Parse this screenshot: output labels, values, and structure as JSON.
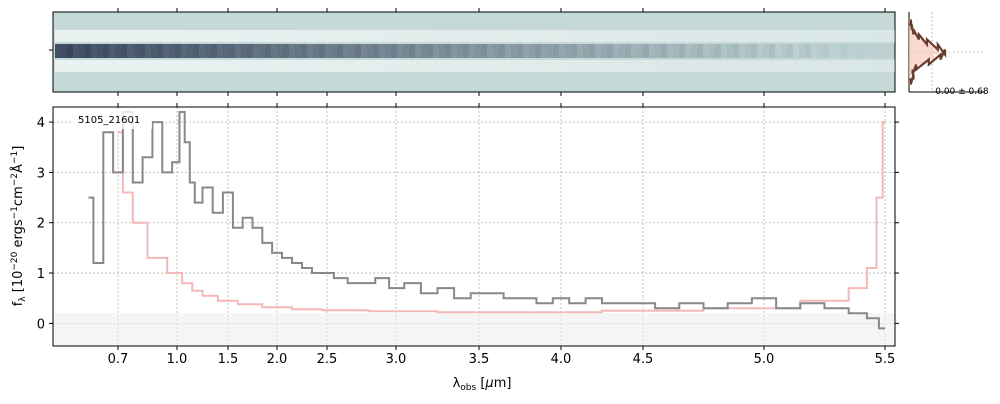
{
  "chart_data": [
    {
      "type": "heatmap",
      "panel": "2d-spectrum",
      "description_visible": "2D spectral cutout, grayscale on teal-gray background",
      "x_ticks_shared_with": "spectrum"
    },
    {
      "type": "histogram",
      "panel": "residual-histogram",
      "annotation": "-0.00 ± 0.68",
      "bins_y": [
        -3,
        -2.5,
        -2,
        -1.5,
        -1,
        -0.5,
        0,
        0.5,
        1,
        1.5,
        2,
        2.5,
        3
      ],
      "counts": [
        0.2,
        0.5,
        0.4,
        0.8,
        2.2,
        3.5,
        4.0,
        3.2,
        2.0,
        1.1,
        0.5,
        0.3,
        0.2
      ],
      "ref_counts": [
        0.05,
        0.15,
        0.4,
        0.9,
        1.8,
        2.8,
        3.2,
        2.8,
        1.8,
        0.9,
        0.4,
        0.15,
        0.05
      ]
    },
    {
      "type": "line",
      "panel": "1d-spectrum",
      "label": "5105_21601",
      "xlabel": "λ_obs [μm]",
      "ylabel": "f_λ [10^-20 ergs^-1 cm^-2 Å^-1]",
      "ylim": [
        -0.45,
        4.3
      ],
      "xlim": [
        0.5,
        5.52
      ],
      "x_ticks": [
        {
          "v": 0.7,
          "label": "0.7"
        },
        {
          "v": 1.0,
          "label": "1.0"
        },
        {
          "v": 1.5,
          "label": "1.5"
        },
        {
          "v": 2.0,
          "label": "2.0"
        },
        {
          "v": 2.5,
          "label": "2.5"
        },
        {
          "v": 3.0,
          "label": "3.0"
        },
        {
          "v": 3.5,
          "label": "3.5"
        },
        {
          "v": 4.0,
          "label": "4.0"
        },
        {
          "v": 4.5,
          "label": "4.5"
        },
        {
          "v": 5.0,
          "label": "5.0"
        },
        {
          "v": 5.5,
          "label": "5.5"
        }
      ],
      "y_ticks": [
        0,
        1,
        2,
        3,
        4
      ],
      "grid": true,
      "colors": {
        "flux": "#888888",
        "error": "#f4b8b8",
        "err_band": "#eeeeee"
      },
      "series": [
        {
          "role": "flux",
          "x": [
            0.55,
            0.6,
            0.65,
            0.7,
            0.75,
            0.8,
            0.85,
            0.9,
            0.95,
            1.0,
            1.05,
            1.1,
            1.15,
            1.2,
            1.3,
            1.4,
            1.5,
            1.6,
            1.7,
            1.8,
            1.9,
            2.0,
            2.1,
            2.2,
            2.3,
            2.4,
            2.5,
            2.6,
            2.7,
            2.8,
            2.9,
            3.0,
            3.1,
            3.2,
            3.3,
            3.4,
            3.5,
            3.6,
            3.7,
            3.8,
            3.9,
            4.0,
            4.1,
            4.2,
            4.3,
            4.4,
            4.5,
            4.6,
            4.7,
            4.8,
            4.9,
            5.0,
            5.1,
            5.2,
            5.3,
            5.4,
            5.45,
            5.5
          ],
          "y": [
            2.5,
            1.2,
            3.8,
            3.0,
            4.2,
            2.8,
            3.3,
            4.0,
            3.0,
            3.2,
            4.2,
            3.6,
            2.8,
            2.4,
            2.7,
            2.2,
            2.6,
            1.9,
            2.1,
            1.9,
            1.6,
            1.4,
            1.3,
            1.2,
            1.1,
            1.0,
            1.0,
            0.9,
            0.8,
            0.8,
            0.9,
            0.7,
            0.8,
            0.6,
            0.7,
            0.5,
            0.6,
            0.6,
            0.5,
            0.5,
            0.4,
            0.5,
            0.4,
            0.5,
            0.4,
            0.4,
            0.4,
            0.3,
            0.4,
            0.3,
            0.4,
            0.5,
            0.3,
            0.4,
            0.3,
            0.2,
            0.1,
            -0.1
          ]
        },
        {
          "role": "error",
          "x": [
            0.7,
            0.75,
            0.8,
            0.9,
            1.0,
            1.1,
            1.2,
            1.3,
            1.5,
            1.7,
            2.0,
            2.3,
            2.6,
            3.0,
            3.5,
            4.0,
            4.5,
            5.0,
            5.3,
            5.4,
            5.45,
            5.48,
            5.5
          ],
          "y": [
            3.8,
            2.6,
            2.0,
            1.3,
            1.0,
            0.8,
            0.65,
            0.55,
            0.45,
            0.38,
            0.32,
            0.28,
            0.26,
            0.24,
            0.22,
            0.22,
            0.25,
            0.3,
            0.45,
            0.7,
            1.1,
            2.5,
            4.0
          ]
        }
      ]
    }
  ]
}
